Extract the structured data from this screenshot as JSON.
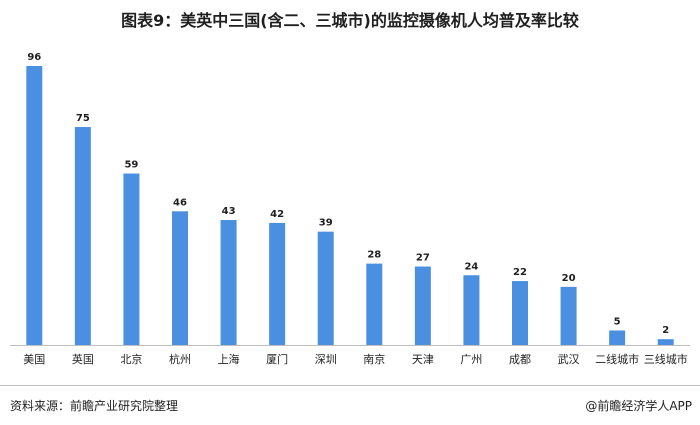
{
  "title": "图表9：美英中三国(含二、三城市)的监控摄像机人均普及率比较",
  "footer": {
    "source": "资料来源：前瞻产业研究院整理",
    "credit": "@前瞻经济学人APP"
  },
  "colors": {
    "bar": "#4a8fe0",
    "axis": "#bfbfbf",
    "text": "#1f1f1f"
  },
  "chart_data": {
    "type": "bar",
    "title": "图表9：美英中三国(含二、三城市)的监控摄像机人均普及率比较",
    "xlabel": "",
    "ylabel": "",
    "categories": [
      "美国",
      "英国",
      "北京",
      "杭州",
      "上海",
      "厦门",
      "深圳",
      "南京",
      "天津",
      "广州",
      "成都",
      "武汉",
      "二线城市",
      "三线城市"
    ],
    "values": [
      96,
      75,
      59,
      46,
      43,
      42,
      39,
      28,
      27,
      24,
      22,
      20,
      5,
      2
    ],
    "ylim": [
      0,
      96
    ],
    "grid": false,
    "data_labels": true
  }
}
